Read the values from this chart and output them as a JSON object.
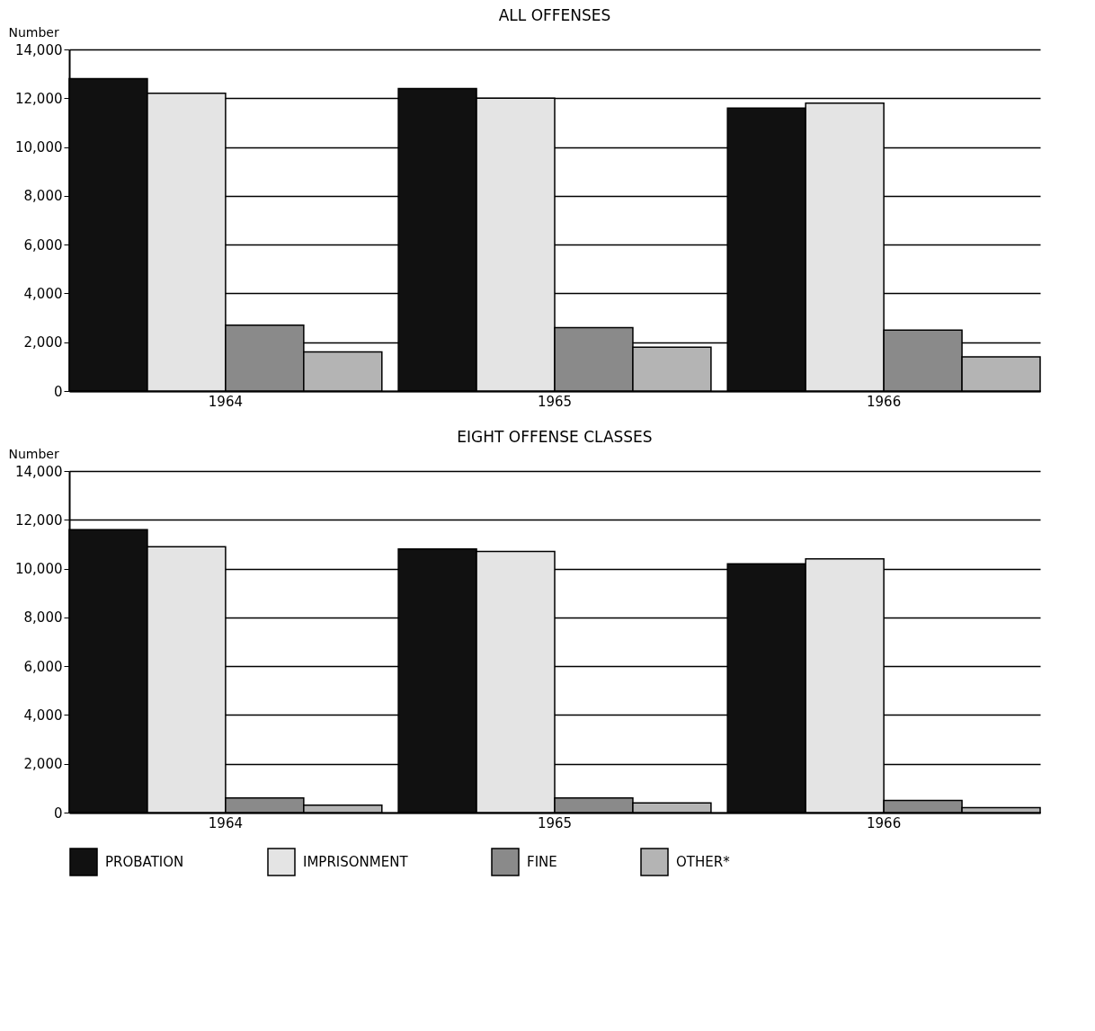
{
  "chart_data": [
    {
      "type": "bar",
      "title": "ALL OFFENSES",
      "ylabel": "Number",
      "categories": [
        "1964",
        "1965",
        "1966"
      ],
      "ylim": [
        0,
        14000
      ],
      "yticks": [
        0,
        {
          "value": 2000,
          "label": "2,000"
        },
        {
          "value": 4000,
          "label": "4,000"
        },
        {
          "value": 6000,
          "label": "6,000"
        },
        {
          "value": 8000,
          "label": "8,000"
        },
        {
          "value": 10000,
          "label": "10,000"
        },
        {
          "value": 12000,
          "label": "12,000"
        },
        {
          "value": 14000,
          "label": "14,000"
        }
      ],
      "grid": "y",
      "series": [
        {
          "color": "#111111",
          "values": [
            12800,
            12400,
            11600
          ]
        },
        {
          "color": "#e4e4e4",
          "values": [
            12200,
            12000,
            11800
          ]
        },
        {
          "color": "#8a8a8a",
          "values": [
            2700,
            2600,
            2500
          ]
        },
        {
          "color": "#b4b4b4",
          "values": [
            1600,
            1800,
            1400
          ]
        }
      ]
    },
    {
      "type": "bar",
      "title": "EIGHT OFFENSE CLASSES",
      "ylabel": "Number",
      "categories": [
        "1964",
        "1965",
        "1966"
      ],
      "ylim": [
        0,
        14000
      ],
      "yticks": [
        0,
        {
          "value": 2000,
          "label": "2,000"
        },
        {
          "value": 4000,
          "label": "4,000"
        },
        {
          "value": 6000,
          "label": "6,000"
        },
        {
          "value": 8000,
          "label": "8,000"
        },
        {
          "value": 10000,
          "label": "10,000"
        },
        {
          "value": 12000,
          "label": "12,000"
        },
        {
          "value": 14000,
          "label": "14,000"
        }
      ],
      "grid": "y",
      "legend": "bottom",
      "series": [
        {
          "name": "PROBATION",
          "color": "#111111",
          "values": [
            11600,
            10800,
            10200
          ]
        },
        {
          "name": "IMPRISONMENT",
          "color": "#e4e4e4",
          "values": [
            10900,
            10700,
            10400
          ]
        },
        {
          "name": "FINE",
          "color": "#8a8a8a",
          "values": [
            600,
            600,
            500
          ]
        },
        {
          "name": "OTHER*",
          "color": "#b4b4b4",
          "values": [
            300,
            400,
            200
          ]
        }
      ]
    }
  ]
}
